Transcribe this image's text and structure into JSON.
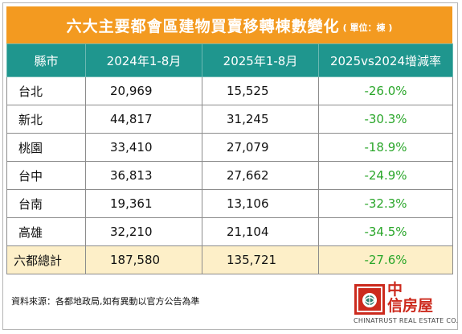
{
  "title": {
    "main": "六大主要都會區建物買賣移轉棟數變化",
    "unit": "( 單位：棟 )"
  },
  "table": {
    "headers": [
      "縣市",
      "2024年1-8月",
      "2025年1-8月",
      "2025vs2024增減率"
    ],
    "rows": [
      {
        "city": "台北",
        "y2024": "20,969",
        "y2025": "15,525",
        "rate": "-26.0%"
      },
      {
        "city": "新北",
        "y2024": "44,817",
        "y2025": "31,245",
        "rate": "-30.3%"
      },
      {
        "city": "桃園",
        "y2024": "33,410",
        "y2025": "27,079",
        "rate": "-18.9%"
      },
      {
        "city": "台中",
        "y2024": "36,813",
        "y2025": "27,662",
        "rate": "-24.9%"
      },
      {
        "city": "台南",
        "y2024": "19,361",
        "y2025": "13,106",
        "rate": "-32.3%"
      },
      {
        "city": "高雄",
        "y2024": "32,210",
        "y2025": "21,104",
        "rate": "-34.5%"
      }
    ],
    "total": {
      "city": "六都總計",
      "y2024": "187,580",
      "y2025": "135,721",
      "rate": "-27.6%"
    }
  },
  "source": "資料來源：各都地政局,如有異動以官方公告為準",
  "logo": {
    "line1": "中",
    "line2": "信房屋",
    "english": "CHINATRUST REAL ESTATE CO."
  },
  "colors": {
    "title_bg": "#f39a20",
    "header_bg": "#1f968e",
    "total_bg": "#fdefc8",
    "rate_text": "#2aa62a",
    "logo_red": "#cc2a1d"
  }
}
